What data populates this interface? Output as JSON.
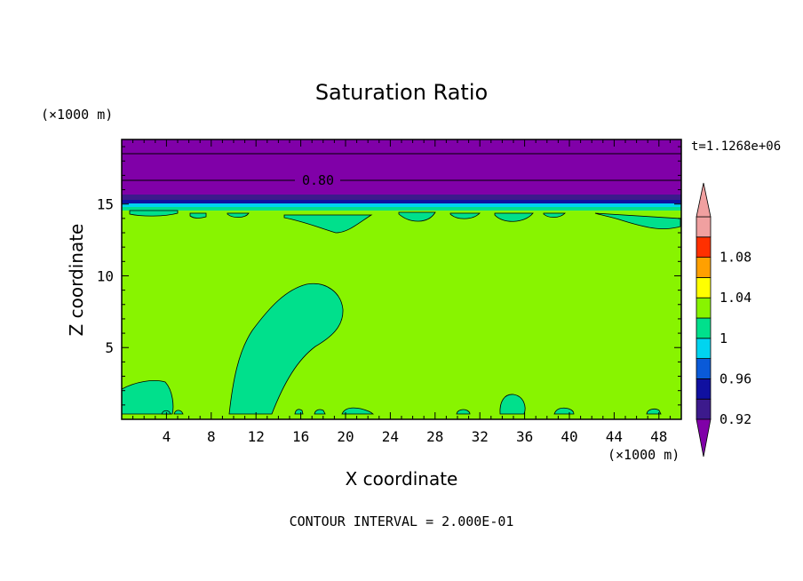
{
  "chart_data": {
    "type": "heatmap",
    "title": "Saturation Ratio",
    "xlabel": "X coordinate",
    "ylabel": "Z coordinate",
    "x_unit": "(×1000 m)",
    "z_unit": "(×1000 m)",
    "time_label": "t=1.1268e+06",
    "footer": "CONTOUR INTERVAL = 2.000E-01",
    "contour_label": "0.80",
    "xlim": [
      0,
      50
    ],
    "ylim": [
      0,
      19.5
    ],
    "x_ticks": [
      "4",
      "8",
      "12",
      "16",
      "20",
      "24",
      "28",
      "32",
      "36",
      "40",
      "44",
      "48"
    ],
    "z_ticks": [
      "5",
      "10",
      "15"
    ],
    "colorbar": {
      "levels": [
        0.92,
        0.94,
        0.96,
        0.98,
        1.0,
        1.02,
        1.04,
        1.06,
        1.08,
        1.1
      ],
      "labels": [
        "0.92",
        "0.96",
        "1",
        "1.04",
        "1.08"
      ],
      "colors": [
        "#3c1a8c",
        "#1010a0",
        "#0a5ad8",
        "#00d4f0",
        "#00e08c",
        "#88f400",
        "#ffff00",
        "#ffa000",
        "#ff3000",
        "#f0a0a0"
      ],
      "under_color": "#8000a8",
      "over_color": "#f0a0a0"
    },
    "layers": [
      {
        "name": "upper",
        "z_range": [
          17.0,
          19.5
        ],
        "value": "<0.92",
        "color": "#8000a8"
      },
      {
        "name": "band-1",
        "z_range": [
          16.2,
          17.0
        ],
        "value": "<0.92",
        "color": "#8000a8"
      },
      {
        "name": "band-2",
        "z_range": [
          15.8,
          16.2
        ],
        "value": "0.92-0.94",
        "color": "#3c1a8c"
      },
      {
        "name": "band-3",
        "z_range": [
          15.5,
          15.8
        ],
        "value": "0.94-0.96",
        "color": "#1010a0"
      },
      {
        "name": "band-4",
        "z_range": [
          15.2,
          15.5
        ],
        "value": "0.98-1.00",
        "color": "#00d4f0"
      },
      {
        "name": "band-5",
        "z_range": [
          14.8,
          15.2
        ],
        "value": "1.00-1.02",
        "color": "#00e08c"
      },
      {
        "name": "main",
        "z_range": [
          0,
          14.8
        ],
        "value": "1.02-1.04",
        "color": "#88f400"
      }
    ],
    "contour_lines_z": [
      17.0,
      18.8
    ]
  }
}
